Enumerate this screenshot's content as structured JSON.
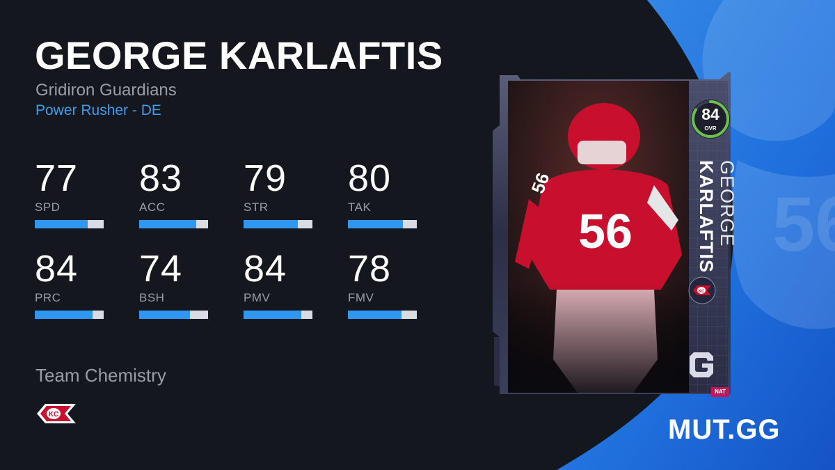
{
  "player": {
    "name": "GEORGE KARLAFTIS",
    "program": "Gridiron Guardians",
    "archetype": "Power Rusher - DE"
  },
  "stats": [
    {
      "abbr": "SPD",
      "value": "77",
      "fill": 0.77
    },
    {
      "abbr": "ACC",
      "value": "83",
      "fill": 0.83
    },
    {
      "abbr": "STR",
      "value": "79",
      "fill": 0.79
    },
    {
      "abbr": "TAK",
      "value": "80",
      "fill": 0.8
    },
    {
      "abbr": "PRC",
      "value": "84",
      "fill": 0.84
    },
    {
      "abbr": "BSH",
      "value": "74",
      "fill": 0.74
    },
    {
      "abbr": "PMV",
      "value": "84",
      "fill": 0.84
    },
    {
      "abbr": "FMV",
      "value": "78",
      "fill": 0.78
    }
  ],
  "chemistry": {
    "label": "Team Chemistry",
    "team_logo": "chiefs-arrowhead-logo"
  },
  "card": {
    "ovr": "84",
    "ovr_label": "OVR",
    "first_name": "GEORGE",
    "last_name": "KARLAFTIS",
    "jersey_number": "56",
    "team_icon": "chiefs-arrowhead-icon",
    "program_icon": "gridiron-guardians-g-icon",
    "badge": "NAT"
  },
  "brand": "MUT.GG",
  "colors": {
    "accent_blue": "#2f97ef",
    "bar_track": "#d9dde3",
    "background": "#15171e",
    "chiefs_red": "#c8102e",
    "ovr_ring": "#6cc04a"
  }
}
